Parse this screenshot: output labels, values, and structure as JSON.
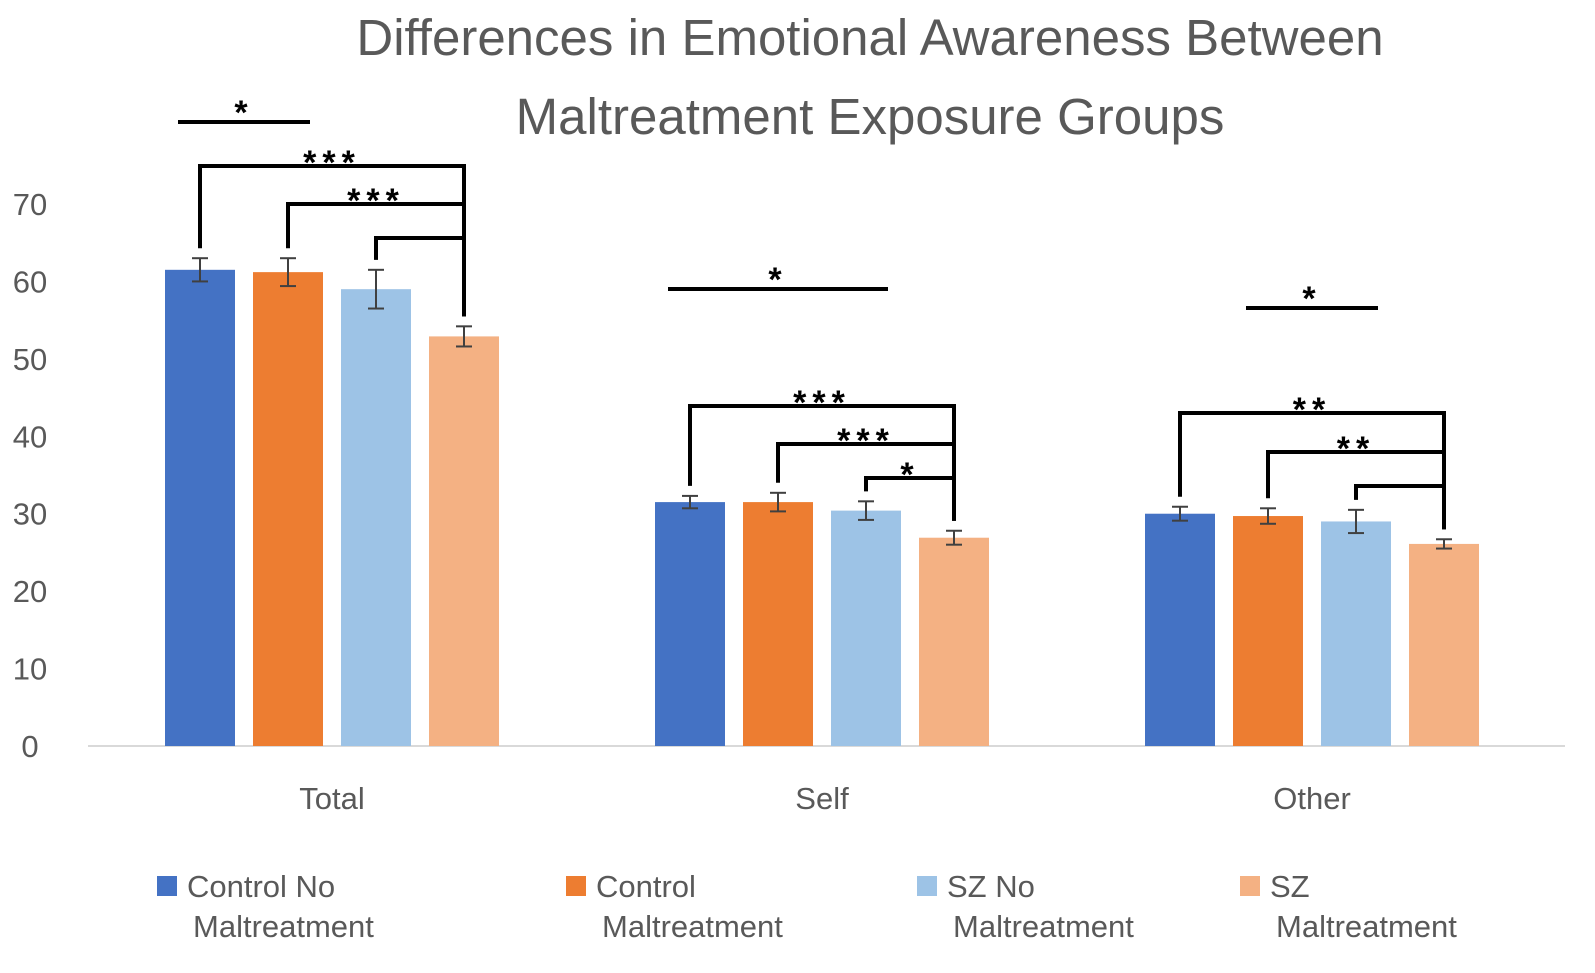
{
  "chart_data": {
    "type": "bar",
    "title_lines": [
      "Differences in Emotional Awareness Between",
      "Maltreatment Exposure Groups"
    ],
    "categories": [
      "Total",
      "Self",
      "Other"
    ],
    "ylim": [
      0,
      70
    ],
    "yticks": [
      "0",
      "10",
      "20",
      "30",
      "40",
      "50",
      "60",
      "70"
    ],
    "grid": false,
    "legend_position": "bottom",
    "series": [
      {
        "name": "Control No Maltreatment",
        "legend_lines": [
          "Control No",
          "Maltreatment"
        ],
        "color": "#4472C4",
        "values": [
          61.5,
          31.5,
          30.0
        ],
        "errors": [
          1.5,
          0.8,
          0.9
        ]
      },
      {
        "name": "Control Maltreatment",
        "legend_lines": [
          "Control",
          "Maltreatment"
        ],
        "color": "#ED7D31",
        "values": [
          61.2,
          31.5,
          29.7
        ],
        "errors": [
          1.8,
          1.2,
          1.0
        ]
      },
      {
        "name": "SZ No Maltreatment",
        "legend_lines": [
          "SZ No",
          "Maltreatment"
        ],
        "color": "#9DC3E6",
        "values": [
          59.0,
          30.4,
          29.0
        ],
        "errors": [
          2.5,
          1.2,
          1.5
        ]
      },
      {
        "name": "SZ Maltreatment",
        "legend_lines": [
          "SZ",
          "Maltreatment"
        ],
        "color": "#F4B183",
        "values": [
          52.9,
          26.9,
          26.1
        ],
        "errors": [
          1.3,
          0.9,
          0.6
        ]
      }
    ],
    "significance": [
      {
        "group": 0,
        "type": "line",
        "from": 0,
        "to": 1,
        "label": "*"
      },
      {
        "group": 0,
        "type": "bracket",
        "from": 0,
        "to": 3,
        "label": "***"
      },
      {
        "group": 0,
        "type": "bracket",
        "from": 1,
        "to": 3,
        "label": "***"
      },
      {
        "group": 0,
        "type": "bracket",
        "from": 2,
        "to": 3,
        "label": ""
      },
      {
        "group": 1,
        "type": "line",
        "from": 0,
        "to": 2,
        "label": "*"
      },
      {
        "group": 1,
        "type": "bracket",
        "from": 0,
        "to": 3,
        "label": "***"
      },
      {
        "group": 1,
        "type": "bracket",
        "from": 1,
        "to": 3,
        "label": "***"
      },
      {
        "group": 1,
        "type": "bracket",
        "from": 2,
        "to": 3,
        "label": "*"
      },
      {
        "group": 2,
        "type": "line",
        "from": 1,
        "to": 2,
        "label": "*"
      },
      {
        "group": 2,
        "type": "bracket",
        "from": 0,
        "to": 3,
        "label": "**"
      },
      {
        "group": 2,
        "type": "bracket",
        "from": 1,
        "to": 3,
        "label": "**"
      },
      {
        "group": 2,
        "type": "bracket",
        "from": 2,
        "to": 3,
        "label": ""
      }
    ]
  }
}
